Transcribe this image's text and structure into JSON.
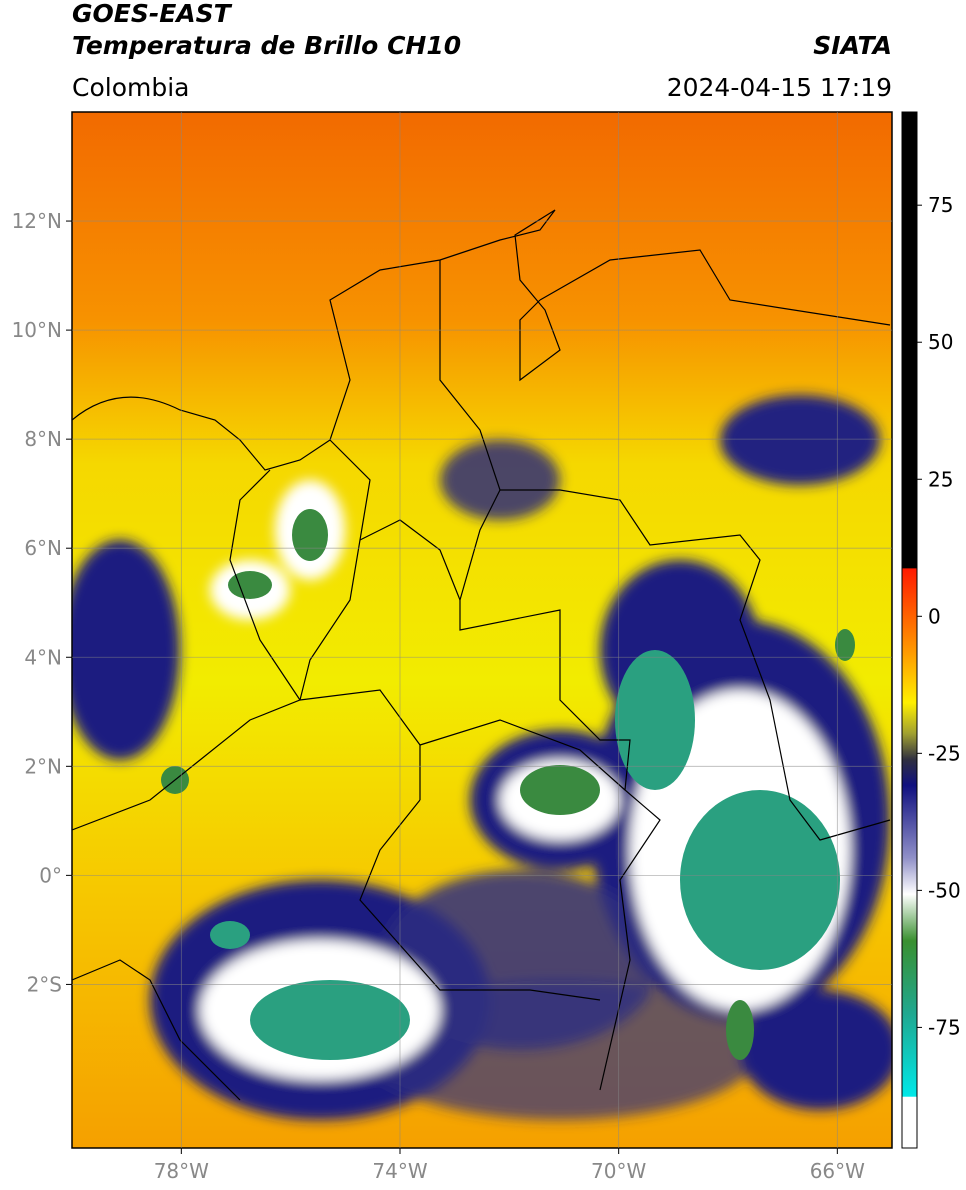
{
  "header": {
    "title": "GOES-EAST",
    "subtitle": "Temperatura de Brillo CH10",
    "source": "SIATA",
    "region": "Colombia",
    "timestamp": "2024-04-15 17:19"
  },
  "map": {
    "lon_range": [
      -80,
      -65
    ],
    "lat_range": [
      -5,
      14
    ],
    "lon_ticks": [
      {
        "value": -78,
        "label": "78°W"
      },
      {
        "value": -74,
        "label": "74°W"
      },
      {
        "value": -70,
        "label": "70°W"
      },
      {
        "value": -66,
        "label": "66°W"
      }
    ],
    "lat_ticks": [
      {
        "value": 12,
        "label": "12°N"
      },
      {
        "value": 10,
        "label": "10°N"
      },
      {
        "value": 8,
        "label": "8°N"
      },
      {
        "value": 6,
        "label": "6°N"
      },
      {
        "value": 4,
        "label": "4°N"
      },
      {
        "value": 2,
        "label": "2°N"
      },
      {
        "value": 0,
        "label": "0°"
      },
      {
        "value": -2,
        "label": "2°S"
      }
    ],
    "grid": true
  },
  "colorbar": {
    "lim": [
      -97,
      92
    ],
    "ticks": [
      75,
      50,
      25,
      0,
      -25,
      -50,
      -75
    ]
  }
}
